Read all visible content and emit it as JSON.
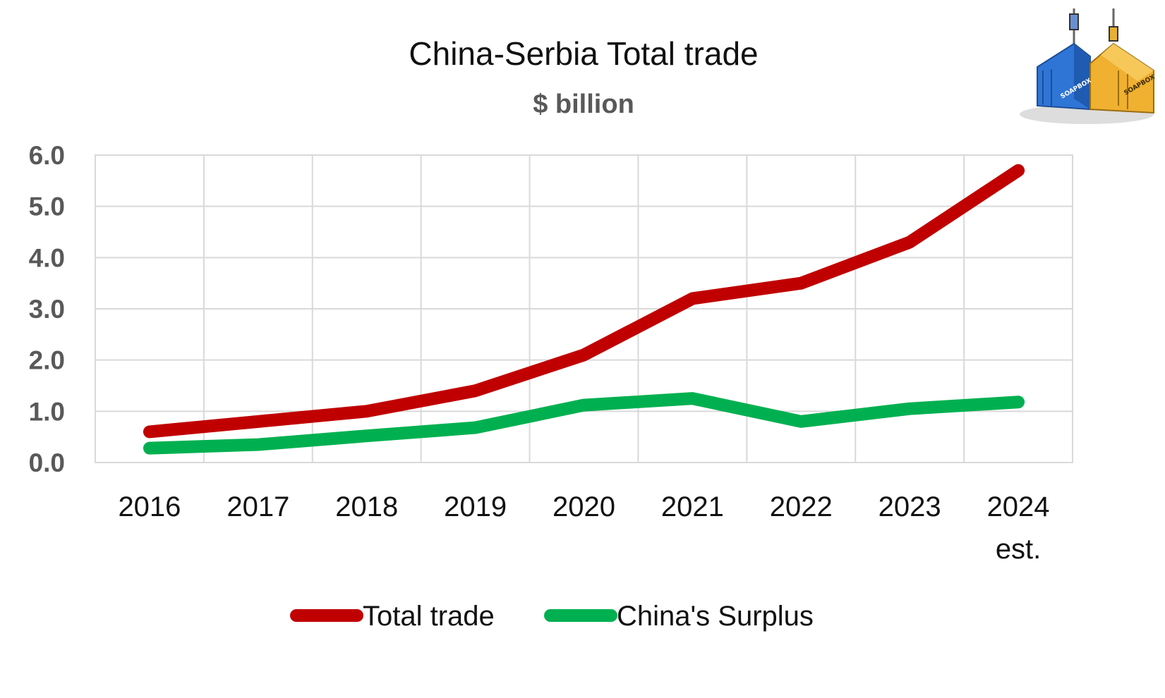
{
  "chart_data": {
    "type": "line",
    "title": "China-Serbia Total trade",
    "subtitle": "$ billion",
    "categories": [
      "2016",
      "2017",
      "2018",
      "2019",
      "2020",
      "2021",
      "2022",
      "2023",
      "2024\nest."
    ],
    "series": [
      {
        "name": "Total trade",
        "color": "#c00000",
        "values": [
          0.6,
          0.8,
          1.0,
          1.4,
          2.1,
          3.2,
          3.5,
          4.3,
          5.7
        ]
      },
      {
        "name": "China's Surplus",
        "color": "#00b050",
        "values": [
          0.28,
          0.35,
          0.52,
          0.68,
          1.12,
          1.25,
          0.8,
          1.05,
          1.18
        ]
      }
    ],
    "yticks": [
      "0.0",
      "1.0",
      "2.0",
      "3.0",
      "4.0",
      "5.0",
      "6.0"
    ],
    "ylim": [
      0,
      6
    ],
    "grid": true,
    "legend_position": "bottom"
  },
  "logo": {
    "text": "SOAPBOX",
    "colors": [
      "#2e75d6",
      "#f0b030"
    ]
  }
}
